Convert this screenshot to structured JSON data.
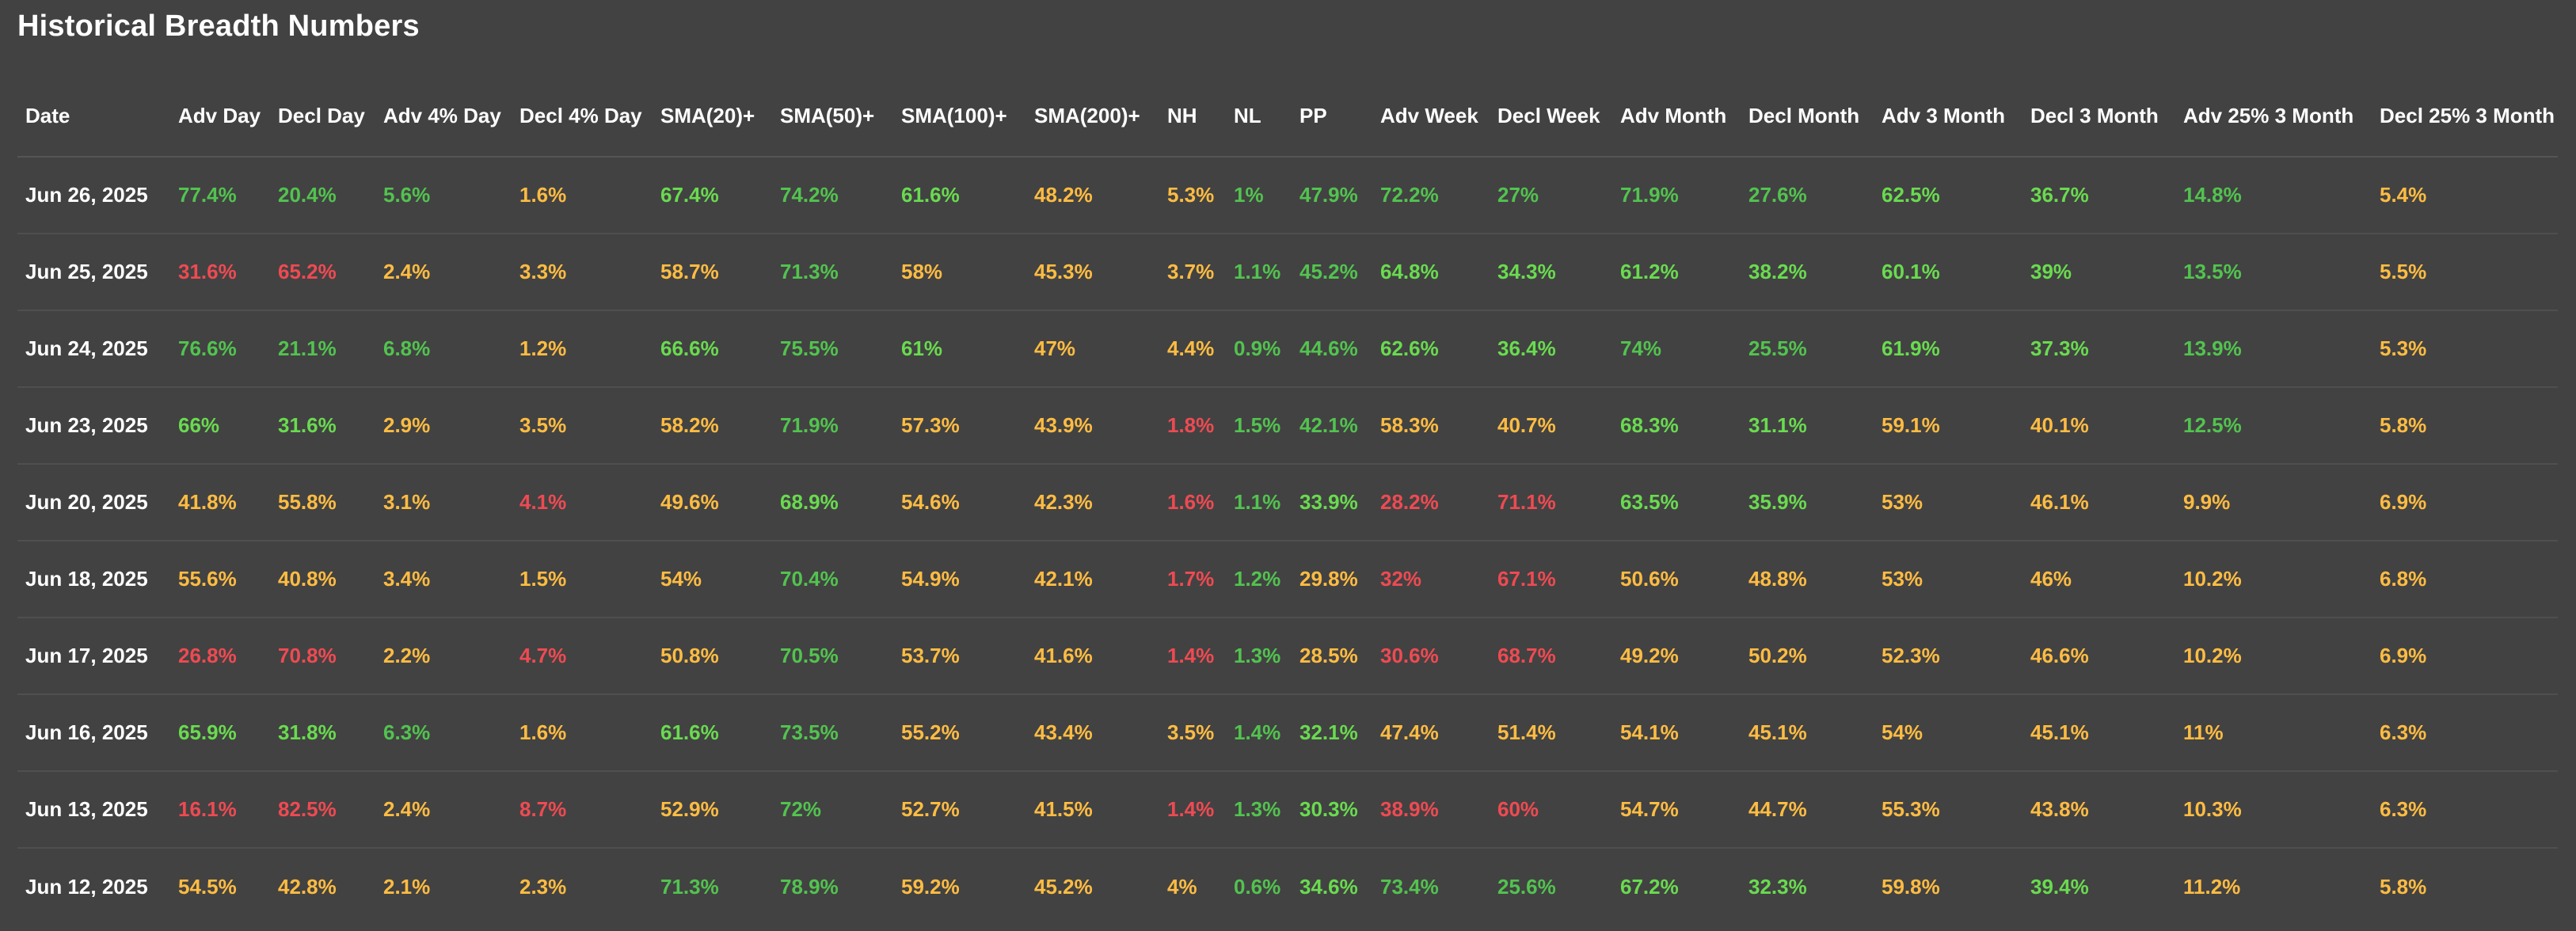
{
  "page": {
    "title": "Historical Breadth Numbers"
  },
  "table": {
    "columns": [
      "Date",
      "Adv Day",
      "Decl Day",
      "Adv 4% Day",
      "Decl 4% Day",
      "SMA(20)+",
      "SMA(50)+",
      "SMA(100)+",
      "SMA(200)+",
      "NH",
      "NL",
      "PP",
      "Adv Week",
      "Decl Week",
      "Adv Month",
      "Decl Month",
      "Adv 3 Month",
      "Decl 3 Month",
      "Adv 25% 3 Month",
      "Decl 25% 3 Month"
    ],
    "colors": {
      "bright_green": "#69db4f",
      "green": "#52c34f",
      "yellow": "#ffbc42",
      "red": "#ef4a52"
    },
    "rows": [
      {
        "date": "Jun 26, 2025",
        "values": [
          "77.4%",
          "20.4%",
          "5.6%",
          "1.6%",
          "67.4%",
          "74.2%",
          "61.6%",
          "48.2%",
          "5.3%",
          "1%",
          "47.9%",
          "72.2%",
          "27%",
          "71.9%",
          "27.6%",
          "62.5%",
          "36.7%",
          "14.8%",
          "5.4%"
        ],
        "colors": [
          "lg",
          "lg",
          "lg",
          "y",
          "g",
          "lg",
          "g",
          "y",
          "y",
          "lg",
          "lg",
          "lg",
          "lg",
          "lg",
          "lg",
          "g",
          "g",
          "lg",
          "y"
        ]
      },
      {
        "date": "Jun 25, 2025",
        "values": [
          "31.6%",
          "65.2%",
          "2.4%",
          "3.3%",
          "58.7%",
          "71.3%",
          "58%",
          "45.3%",
          "3.7%",
          "1.1%",
          "45.2%",
          "64.8%",
          "34.3%",
          "61.2%",
          "38.2%",
          "60.1%",
          "39%",
          "13.5%",
          "5.5%"
        ],
        "colors": [
          "r",
          "r",
          "y",
          "y",
          "y",
          "lg",
          "y",
          "y",
          "y",
          "lg",
          "lg",
          "g",
          "g",
          "g",
          "g",
          "g",
          "g",
          "lg",
          "y"
        ]
      },
      {
        "date": "Jun 24, 2025",
        "values": [
          "76.6%",
          "21.1%",
          "6.8%",
          "1.2%",
          "66.6%",
          "75.5%",
          "61%",
          "47%",
          "4.4%",
          "0.9%",
          "44.6%",
          "62.6%",
          "36.4%",
          "74%",
          "25.5%",
          "61.9%",
          "37.3%",
          "13.9%",
          "5.3%"
        ],
        "colors": [
          "lg",
          "lg",
          "lg",
          "y",
          "g",
          "lg",
          "g",
          "y",
          "y",
          "lg",
          "lg",
          "g",
          "g",
          "lg",
          "lg",
          "g",
          "g",
          "lg",
          "y"
        ]
      },
      {
        "date": "Jun 23, 2025",
        "values": [
          "66%",
          "31.6%",
          "2.9%",
          "3.5%",
          "58.2%",
          "71.9%",
          "57.3%",
          "43.9%",
          "1.8%",
          "1.5%",
          "42.1%",
          "58.3%",
          "40.7%",
          "68.3%",
          "31.1%",
          "59.1%",
          "40.1%",
          "12.5%",
          "5.8%"
        ],
        "colors": [
          "g",
          "g",
          "y",
          "y",
          "y",
          "lg",
          "y",
          "y",
          "r",
          "lg",
          "lg",
          "y",
          "y",
          "g",
          "g",
          "y",
          "y",
          "lg",
          "y"
        ]
      },
      {
        "date": "Jun 20, 2025",
        "values": [
          "41.8%",
          "55.8%",
          "3.1%",
          "4.1%",
          "49.6%",
          "68.9%",
          "54.6%",
          "42.3%",
          "1.6%",
          "1.1%",
          "33.9%",
          "28.2%",
          "71.1%",
          "63.5%",
          "35.9%",
          "53%",
          "46.1%",
          "9.9%",
          "6.9%"
        ],
        "colors": [
          "y",
          "y",
          "y",
          "r",
          "y",
          "g",
          "y",
          "y",
          "r",
          "lg",
          "g",
          "r",
          "r",
          "g",
          "g",
          "y",
          "y",
          "y",
          "y"
        ]
      },
      {
        "date": "Jun 18, 2025",
        "values": [
          "55.6%",
          "40.8%",
          "3.4%",
          "1.5%",
          "54%",
          "70.4%",
          "54.9%",
          "42.1%",
          "1.7%",
          "1.2%",
          "29.8%",
          "32%",
          "67.1%",
          "50.6%",
          "48.8%",
          "53%",
          "46%",
          "10.2%",
          "6.8%"
        ],
        "colors": [
          "y",
          "y",
          "y",
          "y",
          "y",
          "lg",
          "y",
          "y",
          "r",
          "lg",
          "y",
          "r",
          "r",
          "y",
          "y",
          "y",
          "y",
          "y",
          "y"
        ]
      },
      {
        "date": "Jun 17, 2025",
        "values": [
          "26.8%",
          "70.8%",
          "2.2%",
          "4.7%",
          "50.8%",
          "70.5%",
          "53.7%",
          "41.6%",
          "1.4%",
          "1.3%",
          "28.5%",
          "30.6%",
          "68.7%",
          "49.2%",
          "50.2%",
          "52.3%",
          "46.6%",
          "10.2%",
          "6.9%"
        ],
        "colors": [
          "r",
          "r",
          "y",
          "r",
          "y",
          "lg",
          "y",
          "y",
          "r",
          "lg",
          "y",
          "r",
          "r",
          "y",
          "y",
          "y",
          "y",
          "y",
          "y"
        ]
      },
      {
        "date": "Jun 16, 2025",
        "values": [
          "65.9%",
          "31.8%",
          "6.3%",
          "1.6%",
          "61.6%",
          "73.5%",
          "55.2%",
          "43.4%",
          "3.5%",
          "1.4%",
          "32.1%",
          "47.4%",
          "51.4%",
          "54.1%",
          "45.1%",
          "54%",
          "45.1%",
          "11%",
          "6.3%"
        ],
        "colors": [
          "g",
          "g",
          "lg",
          "y",
          "g",
          "lg",
          "y",
          "y",
          "y",
          "lg",
          "g",
          "y",
          "y",
          "y",
          "y",
          "y",
          "y",
          "y",
          "y"
        ]
      },
      {
        "date": "Jun 13, 2025",
        "values": [
          "16.1%",
          "82.5%",
          "2.4%",
          "8.7%",
          "52.9%",
          "72%",
          "52.7%",
          "41.5%",
          "1.4%",
          "1.3%",
          "30.3%",
          "38.9%",
          "60%",
          "54.7%",
          "44.7%",
          "55.3%",
          "43.8%",
          "10.3%",
          "6.3%"
        ],
        "colors": [
          "r",
          "r",
          "y",
          "r",
          "y",
          "lg",
          "y",
          "y",
          "r",
          "lg",
          "g",
          "r",
          "r",
          "y",
          "y",
          "y",
          "y",
          "y",
          "y"
        ]
      },
      {
        "date": "Jun 12, 2025",
        "values": [
          "54.5%",
          "42.8%",
          "2.1%",
          "2.3%",
          "71.3%",
          "78.9%",
          "59.2%",
          "45.2%",
          "4%",
          "0.6%",
          "34.6%",
          "73.4%",
          "25.6%",
          "67.2%",
          "32.3%",
          "59.8%",
          "39.4%",
          "11.2%",
          "5.8%"
        ],
        "colors": [
          "y",
          "y",
          "y",
          "y",
          "lg",
          "lg",
          "y",
          "y",
          "y",
          "lg",
          "g",
          "lg",
          "lg",
          "g",
          "g",
          "y",
          "g",
          "y",
          "y"
        ]
      }
    ]
  }
}
